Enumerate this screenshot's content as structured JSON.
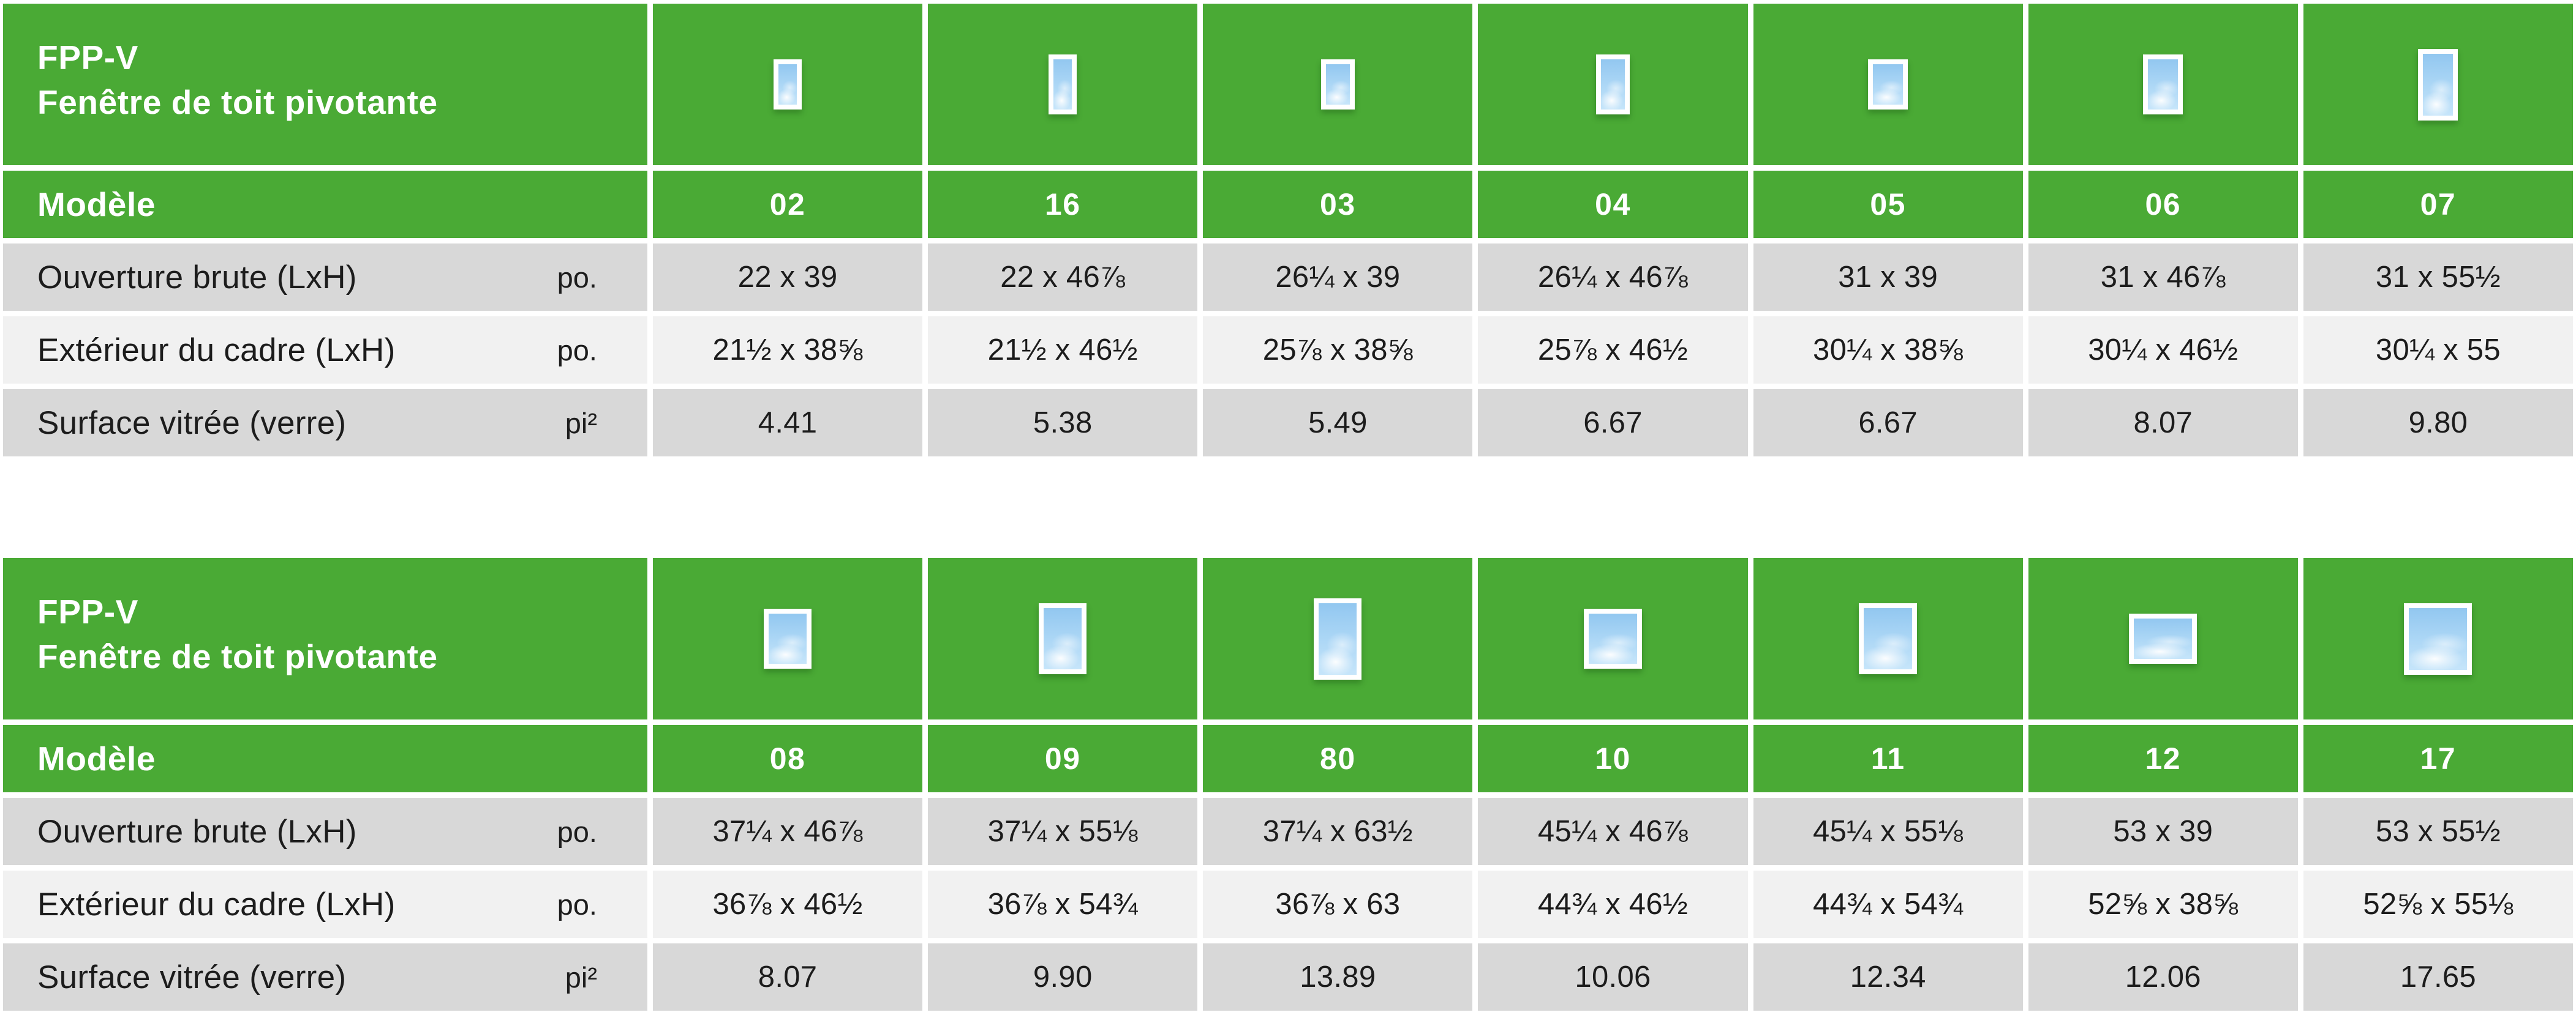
{
  "colors": {
    "accent_green": "#4aaa35",
    "row_gray": "#d8d8d8",
    "row_light": "#f1f1f1",
    "glass_blue": "#a9d5f5"
  },
  "tables": [
    {
      "title_line1": "FPP-V",
      "title_line2": "Fenêtre de toit pivotante",
      "model_label": "Modèle",
      "rows": [
        {
          "label": "Ouverture brute (LxH)",
          "unit": "po."
        },
        {
          "label": "Extérieur du cadre (LxH)",
          "unit": "po."
        },
        {
          "label": "Surface vitrée (verre)",
          "unit": "pi²"
        }
      ],
      "models": [
        {
          "id": "02",
          "icon": {
            "w": 22,
            "h": 39
          },
          "ouverture": "22 x 39",
          "exterieur": "21½ x 38⅝",
          "surface": "4.41"
        },
        {
          "id": "16",
          "icon": {
            "w": 22,
            "h": 46.875
          },
          "ouverture": "22 x 46⅞",
          "exterieur": "21½ x 46½",
          "surface": "5.38"
        },
        {
          "id": "03",
          "icon": {
            "w": 26.25,
            "h": 39
          },
          "ouverture": "26¼ x 39",
          "exterieur": "25⅞ x 38⅝",
          "surface": "5.49"
        },
        {
          "id": "04",
          "icon": {
            "w": 26.25,
            "h": 46.875
          },
          "ouverture": "26¼ x 46⅞",
          "exterieur": "25⅞ x 46½",
          "surface": "6.67"
        },
        {
          "id": "05",
          "icon": {
            "w": 31,
            "h": 39
          },
          "ouverture": "31 x 39",
          "exterieur": "30¼ x 38⅝",
          "surface": "6.67"
        },
        {
          "id": "06",
          "icon": {
            "w": 31,
            "h": 46.875
          },
          "ouverture": "31 x 46⅞",
          "exterieur": "30¼ x 46½",
          "surface": "8.07"
        },
        {
          "id": "07",
          "icon": {
            "w": 31,
            "h": 55.5
          },
          "ouverture": "31 x 55½",
          "exterieur": "30¼ x 55",
          "surface": "9.80"
        }
      ]
    },
    {
      "title_line1": "FPP-V",
      "title_line2": "Fenêtre de toit pivotante",
      "model_label": "Modèle",
      "rows": [
        {
          "label": "Ouverture brute (LxH)",
          "unit": "po."
        },
        {
          "label": "Extérieur du cadre (LxH)",
          "unit": "po."
        },
        {
          "label": "Surface vitrée (verre)",
          "unit": "pi²"
        }
      ],
      "models": [
        {
          "id": "08",
          "icon": {
            "w": 37.25,
            "h": 46.875
          },
          "ouverture": "37¼ x 46⅞",
          "exterieur": "36⅞ x 46½",
          "surface": "8.07"
        },
        {
          "id": "09",
          "icon": {
            "w": 37.25,
            "h": 55.125
          },
          "ouverture": "37¼ x 55⅛",
          "exterieur": "36⅞ x 54¾",
          "surface": "9.90"
        },
        {
          "id": "80",
          "icon": {
            "w": 37.25,
            "h": 63.5
          },
          "ouverture": "37¼ x 63½",
          "exterieur": "36⅞ x 63",
          "surface": "13.89"
        },
        {
          "id": "10",
          "icon": {
            "w": 45.25,
            "h": 46.875
          },
          "ouverture": "45¼ x 46⅞",
          "exterieur": "44¾ x 46½",
          "surface": "10.06"
        },
        {
          "id": "11",
          "icon": {
            "w": 45.25,
            "h": 55.125
          },
          "ouverture": "45¼ x 55⅛",
          "exterieur": "44¾ x 54¾",
          "surface": "12.34"
        },
        {
          "id": "12",
          "icon": {
            "w": 53,
            "h": 39
          },
          "ouverture": "53 x 39",
          "exterieur": "52⅝ x 38⅝",
          "surface": "12.06"
        },
        {
          "id": "17",
          "icon": {
            "w": 53,
            "h": 55.5
          },
          "ouverture": "53 x 55½",
          "exterieur": "52⅝ x 55⅛",
          "surface": "17.65"
        }
      ]
    }
  ]
}
